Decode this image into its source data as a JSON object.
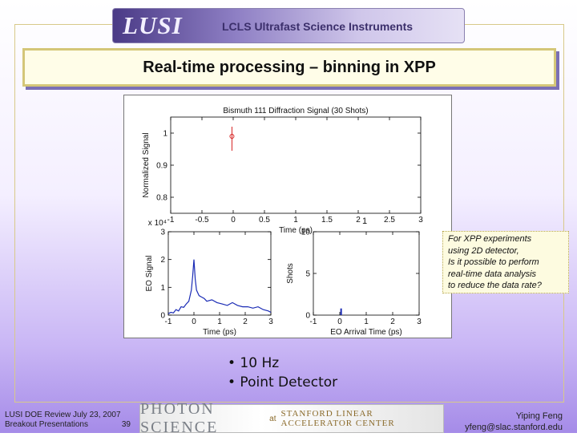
{
  "header": {
    "logo": "LUSI",
    "subtitle": "LCLS Ultrafast Science Instruments"
  },
  "slide": {
    "title": "Real-time processing – binning in XPP",
    "callout_lines": [
      "For XPP experiments",
      "using 2D detector,",
      "Is it possible to perform",
      "real-time data analysis",
      "to reduce the data rate?"
    ],
    "bullets": [
      "• 10 Hz",
      "• Point Detector"
    ]
  },
  "footer": {
    "left_line1": "LUSI DOE Review July 23, 2007",
    "left_line2": "Breakout Presentations",
    "page_number": "39",
    "center_logo": "PHOTON SCIENCE",
    "center_at": "at",
    "center_org": "STANFORD LINEAR ACCELERATOR CENTER",
    "right_name": "Yiping Feng",
    "right_email": "yfeng@slac.stanford.edu"
  },
  "chart_data": [
    {
      "type": "scatter",
      "title": "Bismuth 111 Diffraction Signal (30 Shots)",
      "xlabel": "Time (ps)",
      "ylabel": "Normalized Signal",
      "xlim": [
        -1,
        3
      ],
      "ylim": [
        0.75,
        1.05
      ],
      "xticks": [
        "-1",
        "-0.5",
        "0",
        "0.5",
        "1",
        "1.5",
        "2",
        "2.5",
        "3"
      ],
      "yticks": [
        "1",
        "0.9",
        "0.8"
      ],
      "points": [
        {
          "x": -0.02,
          "y": 0.99,
          "err": 0.03
        }
      ],
      "colors": {
        "marker": "#d62020"
      }
    },
    {
      "type": "line",
      "xlabel": "Time (ps)",
      "ylabel": "EO Signal",
      "exponent_label": "x 10⁴",
      "xlim": [
        -1,
        3
      ],
      "ylim": [
        0,
        3
      ],
      "xticks": [
        "-1",
        "0",
        "1",
        "2",
        "3"
      ],
      "yticks": [
        "3",
        "2",
        "1",
        "0"
      ],
      "x": [
        -1,
        -0.9,
        -0.8,
        -0.7,
        -0.6,
        -0.5,
        -0.4,
        -0.3,
        -0.2,
        -0.1,
        -0.05,
        0,
        0.05,
        0.1,
        0.2,
        0.3,
        0.4,
        0.5,
        0.7,
        0.9,
        1.1,
        1.3,
        1.5,
        1.7,
        1.9,
        2.1,
        2.3,
        2.5,
        2.7,
        2.9,
        3.0
      ],
      "y": [
        0.05,
        0.1,
        0.08,
        0.2,
        0.15,
        0.3,
        0.28,
        0.4,
        0.5,
        0.9,
        1.4,
        2.0,
        1.3,
        0.9,
        0.7,
        0.65,
        0.6,
        0.5,
        0.55,
        0.45,
        0.4,
        0.35,
        0.45,
        0.35,
        0.3,
        0.3,
        0.25,
        0.3,
        0.2,
        0.15,
        0.1
      ],
      "colors": {
        "line": "#1a2bb5"
      }
    },
    {
      "type": "bar",
      "xlabel": "EO Arrival Time (ps)",
      "ylabel": "Shots",
      "xlim": [
        -1,
        3
      ],
      "ylim": [
        0,
        10
      ],
      "xticks": [
        "-1",
        "0",
        "1",
        "2",
        "3"
      ],
      "yticks": [
        "10",
        "5",
        "0"
      ],
      "bars": [
        {
          "x": 0.05,
          "value": 0.8
        }
      ],
      "colors": {
        "bar": "#1a2bb5"
      }
    },
    {
      "type": "scatter",
      "extra_label": "1"
    }
  ]
}
